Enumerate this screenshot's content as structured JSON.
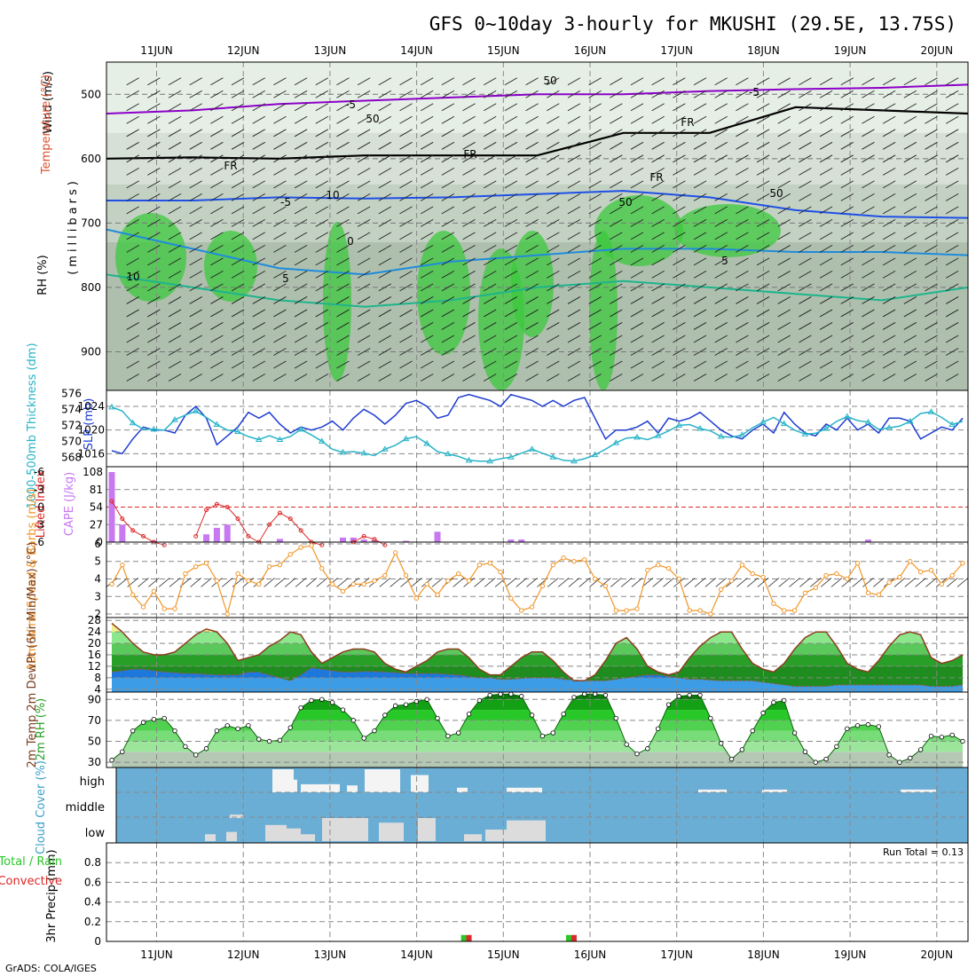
{
  "title": "GFS 0~10day 3-hourly for MKUSHI (29.5E, 13.75S)",
  "footer": "GrADS: COLA/IGES",
  "run_total": "Run Total = 0.13",
  "colors": {
    "rh_green_dark": "#28c828",
    "rh_gray": "#b4c8b4",
    "temp_purple": "#8c00c8",
    "temp_blue": "#1e50e6",
    "temp_lightblue": "#1e8cdc",
    "temp_teal": "#1eb48c",
    "temp_orange": "#f0a028",
    "slp_blue": "#1e3cd2",
    "thick_cyan": "#28b4c8",
    "cape_purple": "#c878f0",
    "li_red": "#dc2828",
    "wind_orange": "#f09628",
    "cloud_blue": "#6aaed6",
    "cloud_white": "#f0f0f0",
    "precip_green": "#28c828",
    "precip_red": "#dc2828"
  },
  "chart_data": [
    {
      "panel": "upper-air",
      "type": "heatmap",
      "ylabel": "(millibars)",
      "var_labels": [
        "Wind (m/s)",
        "Temperature (°C)",
        "RH (%)"
      ],
      "x_ticks": [
        "11JUN",
        "12JUN",
        "13JUN",
        "14JUN",
        "15JUN",
        "16JUN",
        "17JUN",
        "18JUN",
        "19JUN",
        "20JUN"
      ],
      "y_ticks": [
        500,
        600,
        700,
        800,
        900
      ],
      "ylim": [
        960,
        450
      ],
      "contour_labels": [
        "-5",
        "-5",
        "FR",
        "FR",
        "FR",
        "FR",
        "-5",
        "5",
        "5",
        "10",
        "0",
        "10",
        "50",
        "50",
        "50",
        "50"
      ],
      "isotherms": [
        {
          "label": "-5",
          "color": "#8c00c8",
          "y": [
            530,
            525,
            515,
            510,
            505,
            500,
            500,
            495,
            492,
            490,
            485
          ]
        },
        {
          "label": "FR",
          "color": "#000000",
          "y": [
            600,
            598,
            600,
            595,
            595,
            595,
            560,
            560,
            520,
            525,
            530
          ]
        },
        {
          "label": "-5 (5C)",
          "color": "#1e50e6",
          "y": [
            665,
            665,
            660,
            662,
            660,
            655,
            650,
            660,
            680,
            690,
            692
          ]
        },
        {
          "label": "10",
          "color": "#1e8cdc",
          "y": [
            710,
            740,
            770,
            780,
            760,
            750,
            740,
            740,
            745,
            745,
            750
          ]
        },
        {
          "label": "teal",
          "color": "#1eb48c",
          "y": [
            780,
            800,
            820,
            830,
            820,
            800,
            790,
            800,
            810,
            820,
            800
          ]
        }
      ]
    },
    {
      "panel": "slp-thickness",
      "type": "line",
      "left_label": "1000-500mb Thickness (dm)",
      "right_label": "SLP (mb)",
      "left_ticks": [
        568,
        570,
        572,
        574,
        576
      ],
      "right_ticks": [
        1016,
        1020,
        1024
      ],
      "series": [
        {
          "name": "SLP",
          "axis": "right",
          "color": "#1e3cd2",
          "values": [
            1016.5,
            1016,
            1018.5,
            1020.5,
            1020,
            1020,
            1019.5,
            1022.5,
            1024,
            1022,
            1017.5,
            1019,
            1020.5,
            1023,
            1022,
            1023,
            1021,
            1019.5,
            1020.5,
            1020,
            1020.5,
            1021.5,
            1020,
            1022,
            1023.5,
            1022.5,
            1021,
            1022.5,
            1024.5,
            1025,
            1024,
            1022,
            1022.5,
            1025.5,
            1026,
            1025.5,
            1025,
            1024,
            1026,
            1025.5,
            1025,
            1024,
            1025,
            1024,
            1025,
            1025.5,
            1022,
            1018.5,
            1020,
            1020,
            1020.5,
            1021.5,
            1019.5,
            1022,
            1021.5,
            1022,
            1023,
            1021.5,
            1020,
            1019,
            1018.5,
            1020,
            1021,
            1019.5,
            1023,
            1021,
            1019.5,
            1019,
            1021,
            1020,
            1022,
            1020,
            1021,
            1019.5,
            1022,
            1022,
            1021.5,
            1018.5,
            1019.5,
            1020.5,
            1020,
            1022
          ]
        },
        {
          "name": "Thickness",
          "axis": "left",
          "color": "#28b4c8",
          "values": [
            574.3,
            573.8,
            572.3,
            571.5,
            571.5,
            571.4,
            572.7,
            573.3,
            573.8,
            573.0,
            572.1,
            571.4,
            571.2,
            570.6,
            570.2,
            570.7,
            570.2,
            570.6,
            571.5,
            570.8,
            570.0,
            569.0,
            568.6,
            568.7,
            568.5,
            568.2,
            569.0,
            569.5,
            570.3,
            570.6,
            569.7,
            568.7,
            568.4,
            568.1,
            567.6,
            567.5,
            567.5,
            567.8,
            568.0,
            568.5,
            569.0,
            568.5,
            568.0,
            567.6,
            567.5,
            567.8,
            568.3,
            569.0,
            569.8,
            570.4,
            570.5,
            570.2,
            570.7,
            571.3,
            572.0,
            572.1,
            571.6,
            571.3,
            570.6,
            570.5,
            570.8,
            571.7,
            572.4,
            573.0,
            572.2,
            571.4,
            570.9,
            571.0,
            571.6,
            572.5,
            573.1,
            572.6,
            572.4,
            571.5,
            571.7,
            571.9,
            572.5,
            573.5,
            573.7,
            573.0,
            572.1,
            572.5
          ]
        }
      ]
    },
    {
      "panel": "cape-li",
      "type": "bar",
      "left_label": "Lifted Index",
      "right_label": "CAPE (J/kg)",
      "li_ticks": [
        "-6",
        "-3",
        "0",
        "3",
        "6"
      ],
      "cape_ticks": [
        108,
        81,
        54,
        27,
        0
      ],
      "cape_bars": [
        [
          0,
          108
        ],
        [
          1,
          27
        ],
        [
          4,
          2
        ],
        [
          9,
          12
        ],
        [
          10,
          22
        ],
        [
          11,
          27
        ],
        [
          16,
          5
        ],
        [
          22,
          7
        ],
        [
          23,
          7
        ],
        [
          24,
          4
        ],
        [
          25,
          3
        ],
        [
          28,
          2
        ],
        [
          31,
          16
        ],
        [
          38,
          4
        ],
        [
          39,
          4
        ],
        [
          72,
          4
        ]
      ],
      "li": {
        "x": [
          0,
          1,
          2,
          3,
          4,
          5,
          8,
          9,
          10,
          11,
          12,
          13,
          14,
          15,
          16,
          17,
          18,
          19,
          20,
          23,
          24,
          25,
          26
        ],
        "values": [
          -1,
          2,
          4,
          5,
          6,
          6.5,
          5,
          0.5,
          -0.5,
          0,
          2,
          5,
          6,
          3,
          1,
          2,
          4,
          6,
          6.5,
          6,
          5,
          5.5,
          6.5
        ]
      }
    },
    {
      "panel": "wind10m",
      "type": "line",
      "label": "10m Wind Speed & Barbs (m/s)",
      "y_ticks": [
        2,
        3,
        4,
        5,
        6
      ],
      "ylim": [
        2,
        6
      ],
      "values": [
        3.7,
        4.8,
        3.1,
        2.4,
        3.3,
        2.3,
        2.3,
        4.3,
        4.7,
        4.9,
        3.9,
        2.0,
        4.3,
        3.9,
        3.7,
        4.7,
        4.8,
        5.4,
        5.8,
        5.9,
        4.6,
        3.7,
        3.3,
        3.7,
        3.7,
        3.9,
        4.2,
        5.5,
        4.2,
        2.9,
        3.7,
        3.1,
        3.9,
        4.3,
        3.9,
        4.8,
        4.9,
        4.4,
        2.9,
        2.2,
        2.4,
        3.6,
        4.8,
        5.2,
        5.0,
        5.1,
        4.0,
        3.6,
        2.2,
        2.2,
        2.3,
        4.5,
        4.8,
        4.6,
        4.0,
        2.2,
        2.2,
        2.0,
        3.4,
        3.9,
        4.8,
        4.3,
        4.1,
        2.6,
        2.2,
        2.2,
        3.2,
        3.5,
        4.2,
        4.3,
        4.0,
        4.9,
        3.2,
        3.1,
        3.8,
        4.1,
        5.0,
        4.4,
        4.5,
        3.7,
        4.2,
        4.9
      ]
    },
    {
      "panel": "temp2m",
      "type": "area",
      "label": "2m Temp 2m DewPt (6hr Min/Max) (°C)",
      "y_ticks": [
        4,
        8,
        12,
        16,
        20,
        24,
        28
      ],
      "ylim": [
        3,
        29
      ],
      "temp": [
        27,
        24,
        20,
        17,
        16,
        16,
        17,
        20,
        23,
        25,
        24,
        20,
        14,
        15,
        16,
        19,
        21,
        24,
        23,
        17,
        13,
        15,
        17,
        18,
        18,
        17,
        13,
        11,
        10,
        12,
        14,
        17,
        18,
        18,
        15,
        11,
        9,
        9,
        12,
        15,
        17,
        17,
        14,
        10,
        7,
        7,
        9,
        14,
        20,
        22,
        18,
        12,
        10,
        9,
        10,
        15,
        19,
        22,
        24,
        24,
        18,
        13,
        11,
        10,
        13,
        18,
        22,
        24,
        24,
        19,
        13,
        11,
        10,
        14,
        19,
        23,
        24,
        23,
        15,
        13,
        14,
        16
      ],
      "dewpt": [
        10,
        10.5,
        11,
        11,
        10.5,
        10,
        9.8,
        9.5,
        9.5,
        9.2,
        9,
        9,
        9,
        10,
        10,
        9,
        8,
        7,
        9,
        11.5,
        11,
        10.5,
        10,
        10,
        10.2,
        10.2,
        10,
        9.8,
        9.5,
        9.5,
        9.5,
        9.5,
        9.2,
        9,
        8.5,
        8,
        8,
        7.5,
        7.5,
        7.8,
        8,
        8,
        8,
        7.5,
        7.2,
        7,
        7,
        7,
        7.5,
        8,
        8.5,
        9,
        9,
        8.5,
        8,
        7.5,
        7.5,
        7.2,
        7,
        7,
        7,
        7,
        6.5,
        6,
        5.5,
        5,
        5,
        5,
        5,
        5.5,
        5.5,
        5.5,
        5.5,
        5.5,
        5.5,
        5.5,
        5.5,
        5.5,
        5,
        5,
        5,
        5.5
      ]
    },
    {
      "panel": "rh2m",
      "type": "area",
      "label": "2m RH (%)",
      "y_ticks": [
        30,
        50,
        70,
        90
      ],
      "ylim": [
        25,
        97
      ],
      "values": [
        32,
        40,
        60,
        68,
        71,
        72,
        60,
        45,
        37,
        43,
        60,
        65,
        62,
        65,
        52,
        50,
        51,
        63,
        82,
        89,
        90,
        87,
        80,
        70,
        53,
        60,
        75,
        84,
        85,
        88,
        90,
        72,
        55,
        58,
        76,
        89,
        94,
        95,
        95,
        93,
        75,
        55,
        58,
        76,
        92,
        95,
        95,
        94,
        72,
        47,
        38,
        43,
        62,
        85,
        93,
        94,
        94,
        72,
        48,
        33,
        42,
        60,
        77,
        87,
        89,
        58,
        40,
        30,
        33,
        45,
        62,
        65,
        66,
        64,
        37,
        30,
        34,
        42,
        55,
        54,
        56,
        50
      ]
    },
    {
      "panel": "cloud",
      "type": "bar",
      "label": "Cloud Cover (%)",
      "levels": [
        "high",
        "middle",
        "low"
      ],
      "high": [
        [
          44,
          50,
          1
        ],
        [
          48,
          51,
          0.55
        ],
        [
          52,
          56,
          0.35
        ],
        [
          56,
          62,
          0.35
        ],
        [
          60,
          63,
          0.35
        ],
        [
          65,
          68,
          0.3
        ],
        [
          70,
          80,
          1
        ],
        [
          83,
          88,
          0.75
        ],
        [
          96,
          99,
          0.2
        ],
        [
          110,
          120,
          0.2
        ],
        [
          164,
          172,
          0.12
        ],
        [
          182,
          189,
          0.12
        ],
        [
          221,
          231,
          0.12
        ]
      ],
      "mid": [
        [
          32,
          36,
          0.15
        ]
      ],
      "low": [
        [
          25,
          28,
          0.3
        ],
        [
          31,
          34,
          0.4
        ],
        [
          42,
          48,
          0.7
        ],
        [
          48,
          52,
          0.55
        ],
        [
          52,
          56,
          0.3
        ],
        [
          58,
          71,
          1
        ],
        [
          74,
          81,
          0.8
        ],
        [
          85,
          90,
          1
        ],
        [
          98,
          103,
          0.3
        ],
        [
          104,
          110,
          0.5
        ],
        [
          110,
          121,
          0.9
        ]
      ]
    },
    {
      "panel": "precip",
      "type": "bar",
      "label": "3hr Precip (mm)",
      "legend": [
        "Total / Rain",
        "Convective"
      ],
      "y_ticks": [
        0,
        0.2,
        0.4,
        0.6,
        0.8
      ],
      "ylim": [
        0,
        1.0
      ],
      "bars": [
        [
          33.5,
          0.065
        ],
        [
          34,
          0.065
        ],
        [
          43.5,
          0.065
        ],
        [
          44,
          0.065
        ]
      ]
    }
  ]
}
